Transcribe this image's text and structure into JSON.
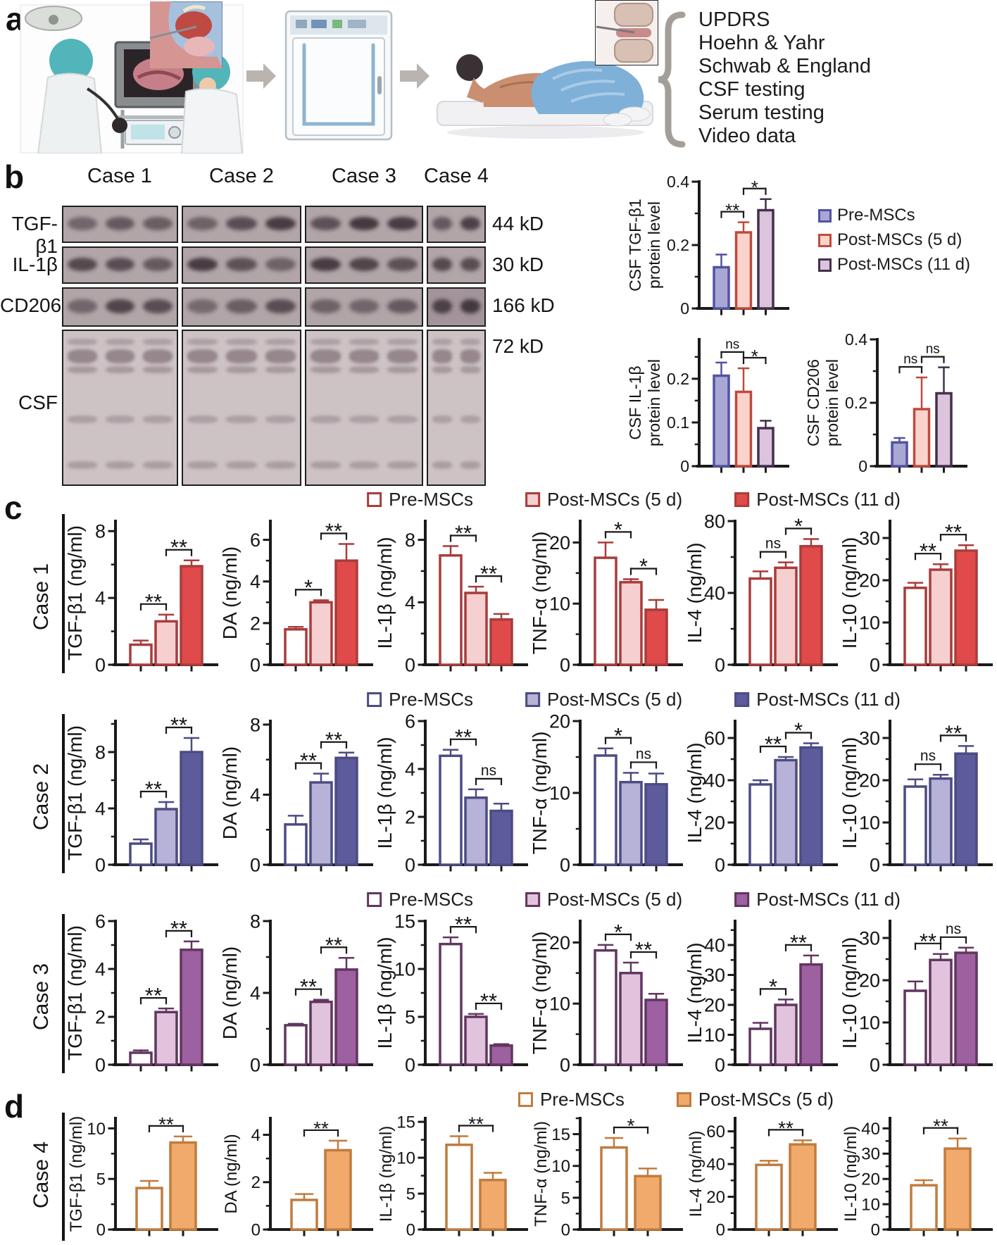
{
  "panel_a": {
    "label": "a",
    "illustrations": {
      "endoscopy": "endoscopic collection scene",
      "nasal_inset": "nasal cavity anatomy inset",
      "incubator": "cell culture incubator",
      "patient": "patient receiving intrathecal injection",
      "spine_inset": "lumbar puncture needle inset"
    },
    "assessments": [
      "UPDRS",
      "Hoehn & Yahr",
      "Schwab & England",
      "CSF testing",
      "Serum testing",
      "Video data"
    ]
  },
  "panel_b": {
    "label": "b",
    "cases": [
      "Case 1",
      "Case 2",
      "Case 3",
      "Case 4"
    ],
    "blot_rows": [
      {
        "label": "TGF-β1",
        "kd": "44 kD",
        "lanes": [
          [
            0.35,
            0.5,
            0.45
          ],
          [
            0.4,
            0.65,
            0.85
          ],
          [
            0.6,
            0.9,
            0.85
          ],
          [
            0.5,
            0.8
          ]
        ]
      },
      {
        "label": "IL-1β",
        "kd": "30 kD",
        "lanes": [
          [
            0.7,
            0.65,
            0.5
          ],
          [
            0.85,
            0.6,
            0.4
          ],
          [
            0.85,
            0.75,
            0.6
          ],
          [
            0.7,
            0.65
          ]
        ]
      },
      {
        "label": "CD206",
        "kd": "166 kD",
        "lanes": [
          [
            0.35,
            0.75,
            0.65
          ],
          [
            0.3,
            0.45,
            0.65
          ],
          [
            0.4,
            0.35,
            0.5
          ],
          [
            0.75,
            0.85
          ]
        ]
      },
      {
        "label": "CSF",
        "kd": "72 kD",
        "lanes": [
          [
            1,
            1,
            1
          ],
          [
            1,
            1,
            1
          ],
          [
            1,
            1,
            1
          ],
          [
            1,
            1
          ]
        ]
      }
    ]
  },
  "panel_c": {
    "label": "c"
  },
  "panel_d": {
    "label": "d"
  },
  "colors": {
    "panelb": {
      "fills": [
        "#a9a8d5",
        "#fad3cc",
        "#ddc4dd"
      ],
      "strokes": [
        "#5352a0",
        "#bf4a3e",
        "#43304e"
      ]
    },
    "red": {
      "stroke": "#a93c3c",
      "fills": [
        "#ffffff",
        "#f6d0d0",
        "#e04a4a"
      ]
    },
    "blue": {
      "stroke": "#4c4c82",
      "fills": [
        "#ffffff",
        "#b6b2d8",
        "#5d5b9c"
      ]
    },
    "purple": {
      "stroke": "#61365f",
      "fills": [
        "#ffffff",
        "#e2c3de",
        "#9d60a0"
      ]
    },
    "orange": {
      "stroke": "#c07c3e",
      "fills": [
        "#ffffff",
        "#f2a96c"
      ]
    }
  },
  "legends": {
    "b": {
      "labels": [
        "Pre-MSCs",
        "Post-MSCs (5 d)",
        "Post-MSCs (11 d)"
      ],
      "theme": "panelb",
      "dir": "v"
    },
    "c1": {
      "labels": [
        "Pre-MSCs",
        "Post-MSCs (5 d)",
        "Post-MSCs (11 d)"
      ],
      "theme": "red",
      "dir": "h"
    },
    "c2": {
      "labels": [
        "Pre-MSCs",
        "Post-MSCs (5 d)",
        "Post-MSCs (11 d)"
      ],
      "theme": "blue",
      "dir": "h"
    },
    "c3": {
      "labels": [
        "Pre-MSCs",
        "Post-MSCs (5 d)",
        "Post-MSCs (11 d)"
      ],
      "theme": "purple",
      "dir": "h"
    },
    "d": {
      "labels": [
        "Pre-MSCs",
        "Post-MSCs (5 d)"
      ],
      "theme": "orange",
      "dir": "h"
    }
  },
  "chart_data": {
    "type": "bar",
    "group_labels": [
      "Pre-MSCs",
      "Post-MSCs (5 d)",
      "Post-MSCs (11 d)"
    ],
    "panel_b_charts": [
      {
        "ylabel": [
          "CSF TGF-β1",
          "protein level"
        ],
        "ymax": 0.4,
        "yticks": [
          0,
          0.2,
          0.4
        ],
        "values": [
          0.13,
          0.24,
          0.31
        ],
        "errors": [
          0.04,
          0.032,
          0.035
        ],
        "sig": [
          [
            0,
            1,
            "**"
          ],
          [
            1,
            2,
            "*"
          ]
        ]
      },
      {
        "ylabel": [
          "CSF IL-1β",
          "protein level"
        ],
        "ymax": 0.29,
        "yticks": [
          0,
          0.1,
          0.2
        ],
        "values": [
          0.207,
          0.17,
          0.087
        ],
        "errors": [
          0.03,
          0.054,
          0.017
        ],
        "sig": [
          [
            0,
            1,
            "ns"
          ],
          [
            1,
            2,
            "*"
          ]
        ]
      },
      {
        "ylabel": [
          "CSF CD206",
          "protein level"
        ],
        "ymax": 0.4,
        "yticks": [
          0,
          0.2,
          0.4
        ],
        "values": [
          0.075,
          0.18,
          0.23
        ],
        "errors": [
          0.014,
          0.1,
          0.082
        ],
        "sig": [
          [
            0,
            1,
            "ns"
          ],
          [
            1,
            2,
            "ns"
          ]
        ]
      }
    ],
    "rows": [
      {
        "case": "Case 1",
        "theme": "red",
        "charts": [
          {
            "ylabel": "TGF-β1 (ng/ml)",
            "ymax": 8.6,
            "yticks": [
              0,
              4,
              8
            ],
            "values": [
              1.2,
              2.6,
              5.9
            ],
            "errors": [
              0.25,
              0.4,
              0.35
            ],
            "sig": [
              [
                0,
                1,
                "**"
              ],
              [
                1,
                2,
                "**"
              ]
            ]
          },
          {
            "ylabel": "DA (ng/ml)",
            "ymax": 6.9,
            "yticks": [
              0,
              2,
              4,
              6
            ],
            "values": [
              1.7,
              3.0,
              5.0
            ],
            "errors": [
              0.12,
              0.1,
              0.8
            ],
            "sig": [
              [
                0,
                1,
                "*"
              ],
              [
                1,
                2,
                "**"
              ]
            ]
          },
          {
            "ylabel": "IL-1β (ng/ml)",
            "ymax": 9.2,
            "yticks": [
              0,
              4,
              8
            ],
            "values": [
              7.0,
              4.6,
              2.9
            ],
            "errors": [
              0.6,
              0.4,
              0.35
            ],
            "sig": [
              [
                0,
                1,
                "**"
              ],
              [
                1,
                2,
                "**"
              ]
            ]
          },
          {
            "ylabel": "TNF-α (ng/ml)",
            "ymax": 23.5,
            "yticks": [
              0,
              10,
              20
            ],
            "values": [
              17.5,
              13.5,
              9.0
            ],
            "errors": [
              2.5,
              0.5,
              1.6
            ],
            "sig": [
              [
                0,
                1,
                "*"
              ],
              [
                1,
                2,
                "*"
              ]
            ]
          },
          {
            "ylabel": "IL-4 (ng/ml)",
            "ymax": 80,
            "yticks": [
              0,
              40,
              80
            ],
            "values": [
              48,
              54,
              66
            ],
            "errors": [
              4,
              3,
              4
            ],
            "sig": [
              [
                0,
                1,
                "ns"
              ],
              [
                1,
                2,
                "*"
              ]
            ]
          },
          {
            "ylabel": "IL-10 (ng/ml)",
            "ymax": 34,
            "yticks": [
              0,
              10,
              20,
              30
            ],
            "values": [
              18.2,
              22.5,
              27
            ],
            "errors": [
              1.2,
              1.3,
              1.3
            ],
            "sig": [
              [
                0,
                1,
                "**"
              ],
              [
                1,
                2,
                "**"
              ]
            ]
          }
        ]
      },
      {
        "case": "Case 2",
        "theme": "blue",
        "charts": [
          {
            "ylabel": "TGF-β1 (ng/ml)",
            "ymax": 10.2,
            "yticks": [
              0,
              4,
              8
            ],
            "values": [
              1.5,
              3.95,
              8.0
            ],
            "errors": [
              0.3,
              0.5,
              1.0
            ],
            "sig": [
              [
                0,
                1,
                "**"
              ],
              [
                1,
                2,
                "**"
              ]
            ]
          },
          {
            "ylabel": "DA (ng/ml)",
            "ymax": 8.2,
            "yticks": [
              0,
              4,
              8
            ],
            "values": [
              2.3,
              4.7,
              6.1
            ],
            "errors": [
              0.5,
              0.5,
              0.3
            ],
            "sig": [
              [
                0,
                1,
                "**"
              ],
              [
                1,
                2,
                "**"
              ]
            ]
          },
          {
            "ylabel": "IL-1β (ng/ml)",
            "ymax": 6.0,
            "yticks": [
              0,
              2,
              4,
              6
            ],
            "values": [
              4.55,
              2.8,
              2.25
            ],
            "errors": [
              0.25,
              0.35,
              0.3
            ],
            "sig": [
              [
                0,
                1,
                "**"
              ],
              [
                1,
                2,
                "ns"
              ]
            ]
          },
          {
            "ylabel": "TNF-α (ng/ml)",
            "ymax": 20.0,
            "yticks": [
              0,
              10,
              20
            ],
            "values": [
              15.2,
              11.5,
              11.2
            ],
            "errors": [
              1.0,
              1.3,
              1.5
            ],
            "sig": [
              [
                0,
                1,
                "*"
              ],
              [
                1,
                2,
                "ns"
              ]
            ]
          },
          {
            "ylabel": "IL-4 (ng/ml)",
            "ymax": 68,
            "yticks": [
              0,
              20,
              40,
              60
            ],
            "values": [
              38,
              49.5,
              55.5
            ],
            "errors": [
              2,
              1.5,
              2
            ],
            "sig": [
              [
                0,
                1,
                "**"
              ],
              [
                1,
                2,
                "*"
              ]
            ]
          },
          {
            "ylabel": "IL-10 (ng/ml)",
            "ymax": 34,
            "yticks": [
              0,
              10,
              20,
              30
            ],
            "values": [
              18.5,
              20.4,
              26.3
            ],
            "errors": [
              1.7,
              0.9,
              1.8
            ],
            "sig": [
              [
                0,
                1,
                "ns"
              ],
              [
                1,
                2,
                "**"
              ]
            ]
          }
        ]
      },
      {
        "case": "Case 3",
        "theme": "purple",
        "charts": [
          {
            "ylabel": "TGF-β1 (ng/ml)",
            "ymax": 6.0,
            "yticks": [
              0,
              2,
              4,
              6
            ],
            "values": [
              0.5,
              2.2,
              4.8
            ],
            "errors": [
              0.1,
              0.15,
              0.35
            ],
            "sig": [
              [
                0,
                1,
                "**"
              ],
              [
                1,
                2,
                "**"
              ]
            ]
          },
          {
            "ylabel": "DA (ng/ml)",
            "ymax": 8.0,
            "yticks": [
              0,
              4,
              8
            ],
            "values": [
              2.2,
              3.5,
              5.3
            ],
            "errors": [
              0.08,
              0.12,
              0.65
            ],
            "sig": [
              [
                0,
                1,
                "**"
              ],
              [
                1,
                2,
                "**"
              ]
            ]
          },
          {
            "ylabel": "IL-1β (ng/ml)",
            "ymax": 15.0,
            "yticks": [
              0,
              5,
              10,
              15
            ],
            "values": [
              12.6,
              5.0,
              2.0
            ],
            "errors": [
              0.7,
              0.3,
              0.15
            ],
            "sig": [
              [
                0,
                1,
                "**"
              ],
              [
                1,
                2,
                "**"
              ]
            ]
          },
          {
            "ylabel": "TNF-α (ng/ml)",
            "ymax": 23.5,
            "yticks": [
              0,
              10,
              20
            ],
            "values": [
              18.7,
              15.0,
              10.6
            ],
            "errors": [
              0.9,
              1.7,
              1.0
            ],
            "sig": [
              [
                0,
                1,
                "*"
              ],
              [
                1,
                2,
                "**"
              ]
            ]
          },
          {
            "ylabel": "IL-4 (ng/ml)",
            "ymax": 48,
            "yticks": [
              0,
              10,
              20,
              30,
              40
            ],
            "values": [
              12,
              20,
              33.5
            ],
            "errors": [
              2,
              1.8,
              3
            ],
            "sig": [
              [
                0,
                1,
                "*"
              ],
              [
                1,
                2,
                "**"
              ]
            ]
          },
          {
            "ylabel": "IL-10 (ng/ml)",
            "ymax": 34,
            "yticks": [
              0,
              10,
              20,
              30
            ],
            "values": [
              17.5,
              24.8,
              26.5
            ],
            "errors": [
              2.2,
              1.4,
              1.2
            ],
            "sig": [
              [
                0,
                1,
                "**"
              ],
              [
                1,
                2,
                "ns"
              ]
            ]
          }
        ]
      },
      {
        "case": "Case 4",
        "theme": "orange",
        "charts": [
          {
            "ylabel": "TGF-β1 (ng/ml)",
            "ymax": 11.0,
            "yticks": [
              0,
              5,
              10
            ],
            "values": [
              4.1,
              8.6
            ],
            "errors": [
              0.7,
              0.6
            ],
            "sig": [
              [
                0,
                1,
                "**"
              ]
            ]
          },
          {
            "ylabel": "DA (ng/ml)",
            "ymax": 4.7,
            "yticks": [
              0,
              2,
              4
            ],
            "values": [
              1.25,
              3.35
            ],
            "errors": [
              0.25,
              0.4
            ],
            "sig": [
              [
                0,
                1,
                "**"
              ]
            ]
          },
          {
            "ylabel": "IL-1β (ng/ml)",
            "ymax": 15.5,
            "yticks": [
              0,
              5,
              10,
              15
            ],
            "values": [
              11.8,
              6.9
            ],
            "errors": [
              1.2,
              1.0
            ],
            "sig": [
              [
                0,
                1,
                "**"
              ]
            ]
          },
          {
            "ylabel": "TNF-α (ng/ml)",
            "ymax": 17.5,
            "yticks": [
              0,
              5,
              10,
              15
            ],
            "values": [
              12.9,
              8.4
            ],
            "errors": [
              1.5,
              1.2
            ],
            "sig": [
              [
                0,
                1,
                "*"
              ]
            ]
          },
          {
            "ylabel": "IL-4 (ng/ml)",
            "ymax": 68,
            "yticks": [
              0,
              20,
              40,
              60
            ],
            "values": [
              39.5,
              52
            ],
            "errors": [
              2.5,
              2.5
            ],
            "sig": [
              [
                0,
                1,
                "**"
              ]
            ]
          },
          {
            "ylabel": "IL-10 (ng/ml)",
            "ymax": 44,
            "yticks": [
              0,
              10,
              20,
              30,
              40
            ],
            "values": [
              17.5,
              32
            ],
            "errors": [
              2,
              4
            ],
            "sig": [
              [
                0,
                1,
                "**"
              ]
            ]
          }
        ]
      }
    ]
  }
}
